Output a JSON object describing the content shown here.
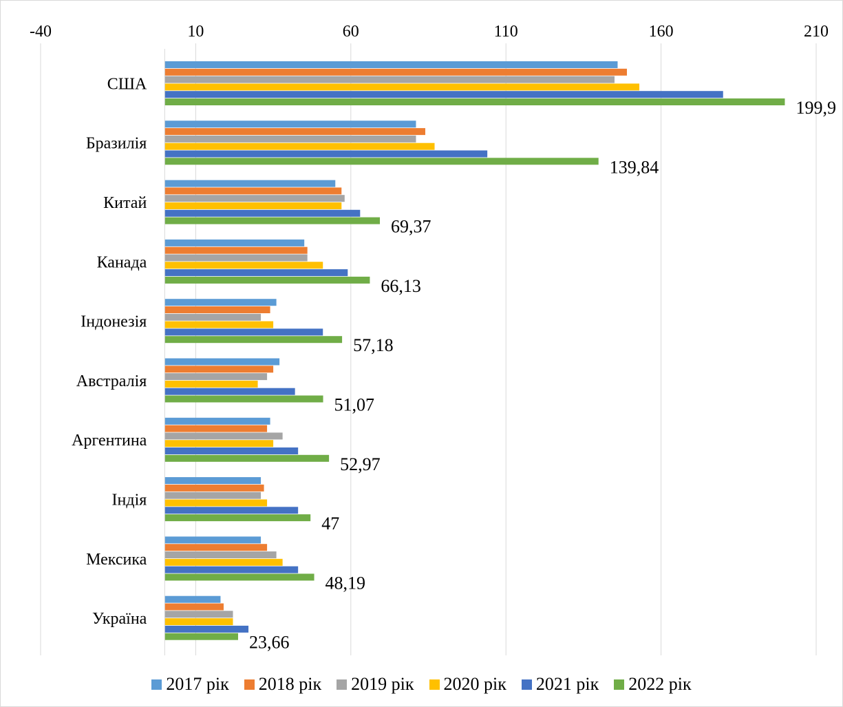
{
  "chart_data": {
    "type": "bar",
    "orientation": "horizontal",
    "title": "",
    "xlabel": "",
    "ylabel": "",
    "xlim": [
      -40,
      210
    ],
    "x_ticks": [
      -40,
      10,
      60,
      110,
      160,
      210
    ],
    "x_tick_labels": [
      "-40",
      "10",
      "60",
      "110",
      "160",
      "210"
    ],
    "axis_position": "top",
    "grid": true,
    "legend_position": "bottom",
    "categories": [
      "США",
      "Бразилія",
      "Китай",
      "Канада",
      "Індонезія",
      "Австралія",
      "Аргентина",
      "Індія",
      "Мексика",
      "Україна"
    ],
    "series": [
      {
        "name": "2017 рік",
        "color": "#5b9bd5",
        "values": [
          146,
          81,
          55,
          45,
          36,
          37,
          34,
          31,
          31,
          18
        ]
      },
      {
        "name": "2018 рік",
        "color": "#ed7d31",
        "values": [
          149,
          84,
          57,
          46,
          34,
          35,
          33,
          32,
          33,
          19
        ]
      },
      {
        "name": "2019 рік",
        "color": "#a5a5a5",
        "values": [
          145,
          81,
          58,
          46,
          31,
          33,
          38,
          31,
          36,
          22
        ]
      },
      {
        "name": "2020 рік",
        "color": "#ffc000",
        "values": [
          153,
          87,
          57,
          51,
          35,
          30,
          35,
          33,
          38,
          22
        ]
      },
      {
        "name": "2021 рік",
        "color": "#4472c4",
        "values": [
          180,
          104,
          63,
          59,
          51,
          42,
          43,
          43,
          43,
          27
        ]
      },
      {
        "name": "2022 рік",
        "color": "#70ad47",
        "values": [
          199.9,
          139.84,
          69.37,
          66.13,
          57.18,
          51.07,
          52.97,
          47,
          48.19,
          23.66
        ]
      }
    ],
    "data_labels": [
      "199,9",
      "139,84",
      "69,37",
      "66,13",
      "57,18",
      "51,07",
      "52,97",
      "47",
      "48,19",
      "23,66"
    ]
  }
}
